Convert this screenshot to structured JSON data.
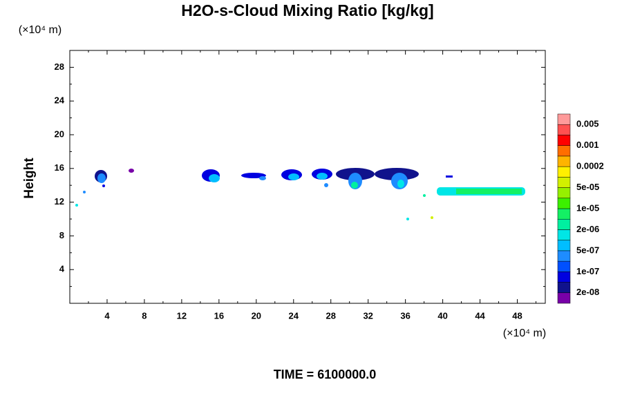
{
  "chart_data": {
    "type": "filled-contour",
    "title": "H2O-s-Cloud Mixing Ratio [kg/kg]",
    "y_label": "Height",
    "x_unit": "(×10⁴ m)",
    "y_unit": "(×10⁴ m)",
    "footer": "TIME = 6100000.0",
    "xlim": [
      0,
      51
    ],
    "ylim": [
      0,
      30
    ],
    "xticks": [
      4,
      8,
      12,
      16,
      20,
      24,
      28,
      32,
      36,
      40,
      44,
      48
    ],
    "yticks": [
      4,
      8,
      12,
      16,
      20,
      24,
      28
    ],
    "xminorticks": [
      2,
      6,
      10,
      14,
      18,
      22,
      26,
      30,
      34,
      38,
      42,
      46,
      50
    ],
    "yminorticks": [
      2,
      6,
      10,
      14,
      18,
      22,
      26
    ],
    "colorbar": {
      "colors": [
        "#7800a8",
        "#10128c",
        "#0000e0",
        "#0050ff",
        "#1e8cff",
        "#00beff",
        "#00e6e6",
        "#00f0a0",
        "#14f064",
        "#3cf000",
        "#96f000",
        "#d2f000",
        "#fff000",
        "#ffb400",
        "#ff6e00",
        "#ff0000",
        "#ff5050",
        "#ff9a9a"
      ],
      "labels": [
        "2e-08",
        "1e-07",
        "5e-07",
        "2e-06",
        "1e-05",
        "5e-05",
        "0.0002",
        "0.001",
        "0.005"
      ]
    }
  }
}
